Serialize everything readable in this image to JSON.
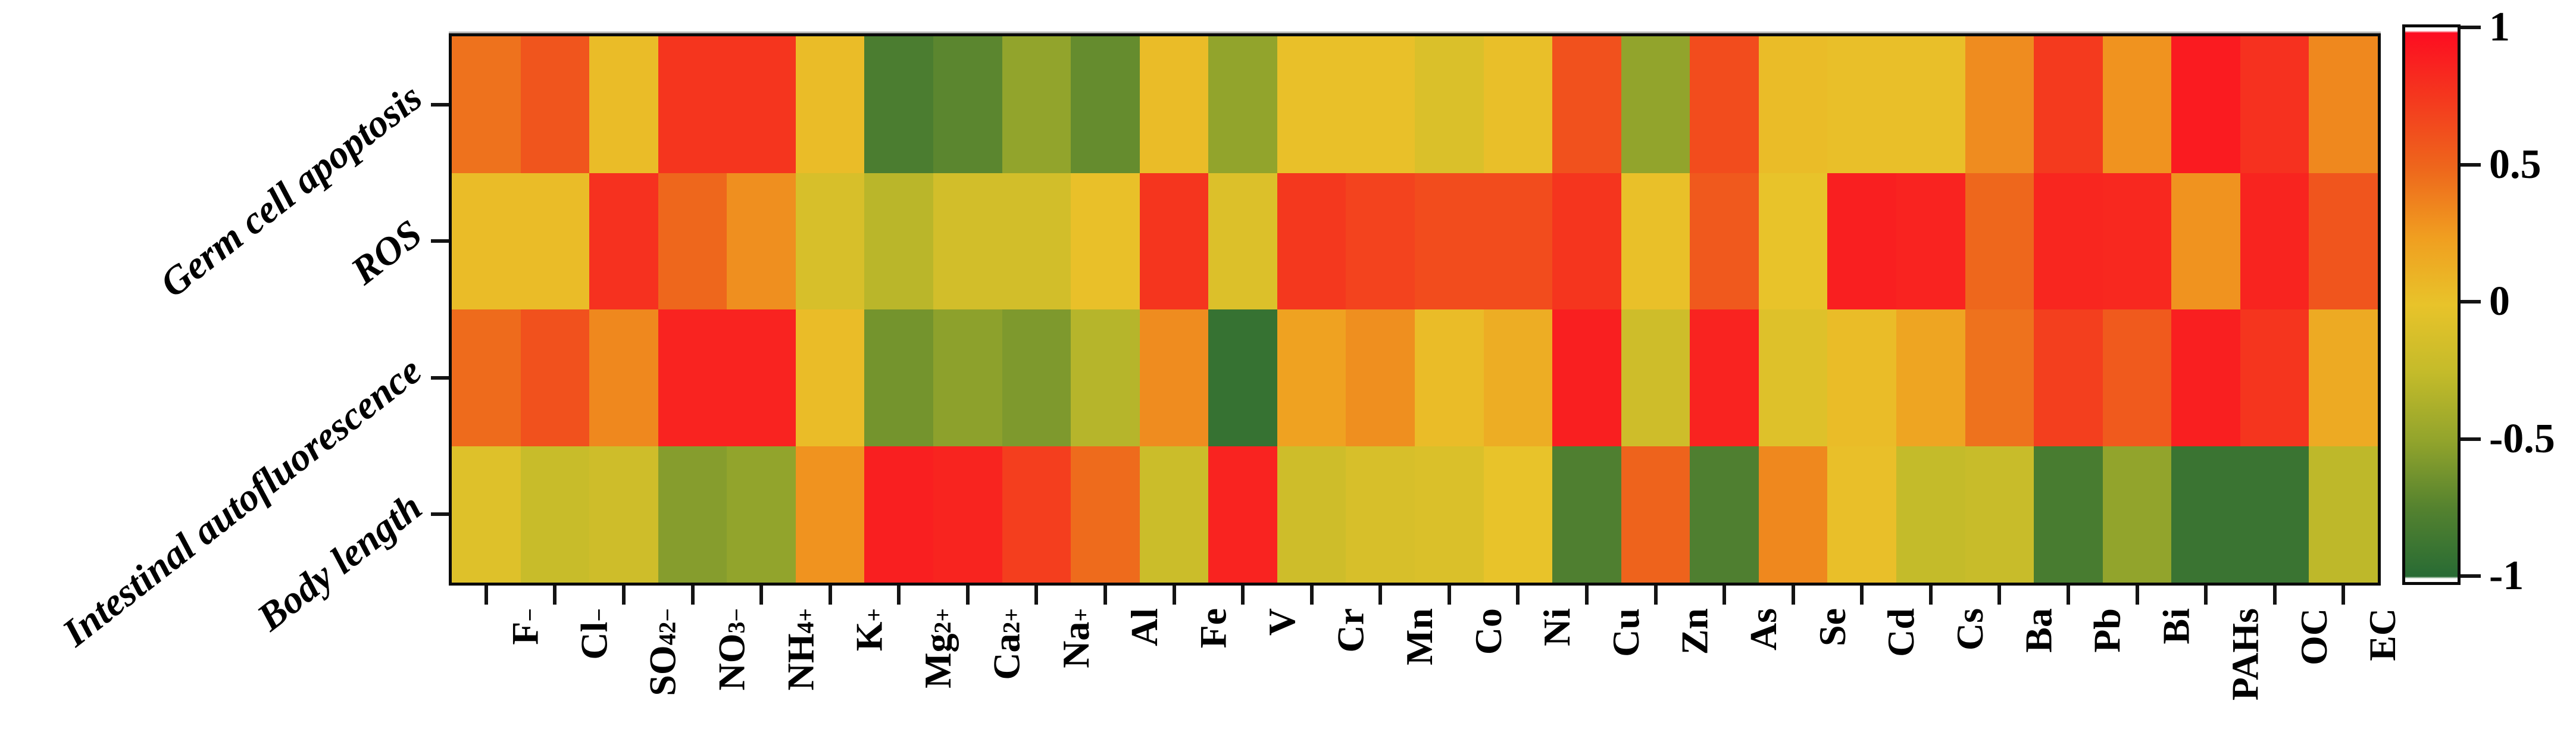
{
  "figure": {
    "background": "#ffffff",
    "frame_color": "#0a0a0a",
    "tick_color": "#141414",
    "text_color": "#000000"
  },
  "chart_data": {
    "type": "heatmap",
    "title": "",
    "xlabel": "",
    "ylabel": "",
    "rows": [
      "Germ cell apoptosis",
      "ROS",
      "Intestinal autofluorescence",
      "Body length"
    ],
    "columns": [
      "F^−",
      "Cl^−",
      "SO_4^2−",
      "NO_3^−",
      "NH_4^+",
      "K^+",
      "Mg^2+",
      "Ca^2+",
      "Na^+",
      "Al",
      "Fe",
      "V",
      "Cr",
      "Mn",
      "Co",
      "Ni",
      "Cu",
      "Zn",
      "As",
      "Se",
      "Cd",
      "Cs",
      "Ba",
      "Pb",
      "Bi",
      "PAHs",
      "OC",
      "EC"
    ],
    "values": [
      [
        0.45,
        0.6,
        0.05,
        0.78,
        0.78,
        0.05,
        -0.8,
        -0.72,
        -0.5,
        -0.68,
        0.05,
        -0.5,
        0.02,
        0.02,
        -0.1,
        0.03,
        0.62,
        -0.5,
        0.65,
        0.05,
        0.03,
        0.03,
        0.33,
        0.75,
        0.3,
        0.92,
        0.8,
        0.35
      ],
      [
        0.05,
        0.05,
        0.8,
        0.5,
        0.32,
        -0.12,
        -0.3,
        -0.15,
        -0.15,
        0.02,
        0.78,
        -0.08,
        0.76,
        0.7,
        0.65,
        0.65,
        0.78,
        0.02,
        0.58,
        0.0,
        0.9,
        0.88,
        0.5,
        0.86,
        0.85,
        0.3,
        0.87,
        0.6
      ],
      [
        0.48,
        0.62,
        0.35,
        0.88,
        0.88,
        0.05,
        -0.62,
        -0.52,
        -0.58,
        -0.32,
        0.33,
        -0.92,
        0.22,
        0.32,
        0.05,
        0.15,
        0.9,
        -0.18,
        0.88,
        -0.07,
        0.05,
        0.2,
        0.45,
        0.72,
        0.57,
        0.9,
        0.78,
        0.17
      ],
      [
        -0.07,
        -0.22,
        -0.18,
        -0.55,
        -0.5,
        0.3,
        0.9,
        0.87,
        0.73,
        0.48,
        -0.2,
        0.88,
        -0.18,
        -0.12,
        -0.1,
        0.0,
        -0.78,
        0.52,
        -0.78,
        0.35,
        0.03,
        -0.25,
        -0.22,
        -0.82,
        -0.5,
        -0.9,
        -0.9,
        -0.28
      ]
    ],
    "value_range": [
      -1,
      1
    ],
    "grid": false,
    "legend_position": "right-colorbar",
    "colorbar": {
      "tick_labels": [
        "1",
        "0.5",
        "0",
        "-0.5",
        "-1"
      ],
      "tick_values": [
        1,
        0.5,
        0,
        -0.5,
        -1
      ],
      "colormap_stops": [
        {
          "t": 1.0,
          "c": "#fd0d21"
        },
        {
          "t": 0.75,
          "c": "#f43a1e"
        },
        {
          "t": 0.5,
          "c": "#ee671c"
        },
        {
          "t": 0.25,
          "c": "#f09e20"
        },
        {
          "t": 0.0,
          "c": "#e8c32a"
        },
        {
          "t": -0.25,
          "c": "#c4bb2a"
        },
        {
          "t": -0.5,
          "c": "#92a42c"
        },
        {
          "t": -0.75,
          "c": "#54822f"
        },
        {
          "t": -1.0,
          "c": "#286b34"
        }
      ]
    }
  }
}
